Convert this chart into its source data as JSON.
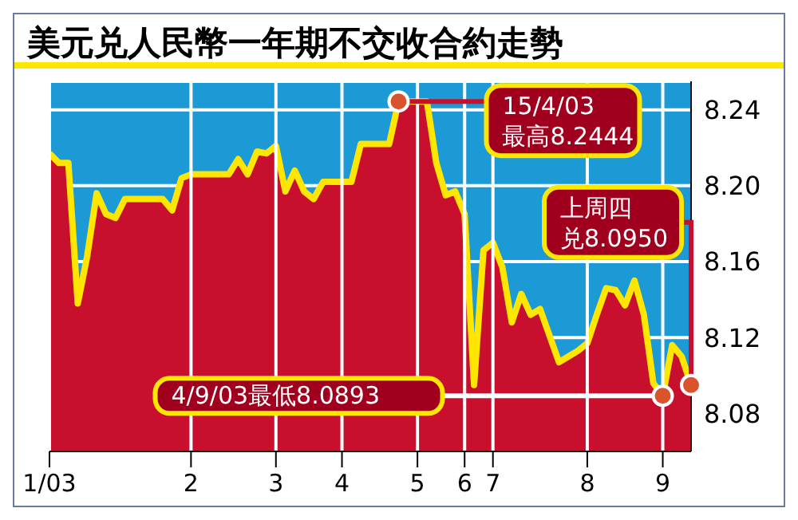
{
  "chart_data": {
    "type": "area",
    "title": "美元兑人民幣一年期不交收合約走勢",
    "categories": [
      "1/03",
      null,
      null,
      null,
      null,
      null,
      null,
      null,
      null,
      null,
      null,
      null,
      null,
      null,
      null,
      "2",
      null,
      null,
      null,
      null,
      null,
      null,
      null,
      null,
      "3",
      null,
      null,
      null,
      null,
      null,
      null,
      "4",
      null,
      null,
      null,
      null,
      null,
      null,
      null,
      "5",
      null,
      null,
      null,
      null,
      "6",
      null,
      null,
      "7",
      null,
      null,
      null,
      null,
      null,
      null,
      null,
      null,
      null,
      "8",
      null,
      null,
      null,
      null,
      null,
      null,
      null,
      "9",
      null,
      null,
      null
    ],
    "series": [
      {
        "color": "#c8102e",
        "values": [
          8.217,
          8.212,
          8.212,
          8.138,
          8.163,
          8.196,
          8.185,
          8.183,
          8.193,
          8.193,
          8.193,
          8.193,
          8.193,
          8.187,
          8.204,
          8.206,
          8.206,
          8.206,
          8.206,
          8.206,
          8.214,
          8.206,
          8.218,
          8.217,
          8.221,
          8.197,
          8.208,
          8.197,
          8.193,
          8.202,
          8.202,
          8.202,
          8.202,
          8.222,
          8.222,
          8.222,
          8.222,
          8.2444,
          8.2444,
          8.2444,
          8.2444,
          8.212,
          8.195,
          8.197,
          8.185,
          8.095,
          8.166,
          8.17,
          8.157,
          8.128,
          8.143,
          8.132,
          8.135,
          8.121,
          8.107,
          8.11,
          8.113,
          8.117,
          8.132,
          8.146,
          8.145,
          8.137,
          8.15,
          8.132,
          8.096,
          8.0893,
          8.116,
          8.11,
          8.095
        ]
      }
    ],
    "ylim": [
      8.06,
      8.255
    ],
    "yticks": [
      8.08,
      8.12,
      8.16,
      {
        "value": 8.2,
        "label": "8.20"
      },
      8.24
    ],
    "grid": true,
    "annotations": [
      "15/4/03最高8.2444",
      "上周四兑8.0950",
      "4/9/03最低8.0893"
    ]
  }
}
